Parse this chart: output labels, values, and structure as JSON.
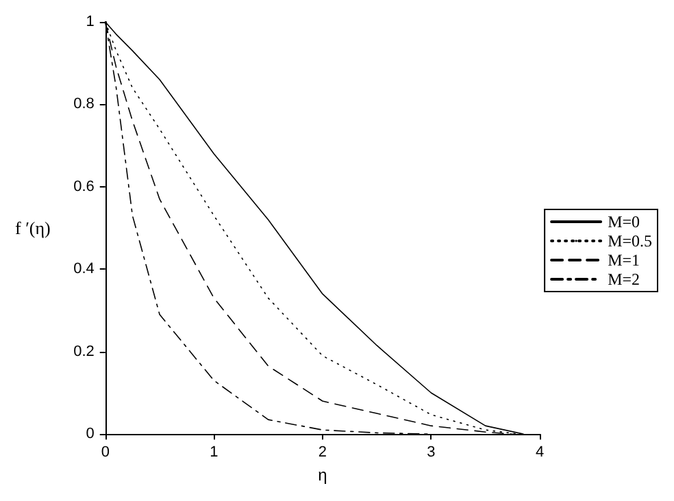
{
  "chart_data": {
    "type": "line",
    "xlabel": "η",
    "ylabel": "f ′(η)",
    "xlim": [
      0,
      4
    ],
    "ylim": [
      0,
      1
    ],
    "xticks": [
      0,
      1,
      2,
      3,
      4
    ],
    "yticks": [
      0,
      0.2,
      0.4,
      0.6,
      0.8,
      1
    ],
    "grid": false,
    "legend": "right",
    "marker": "none",
    "x": [
      0,
      0.1,
      0.25,
      0.5,
      1,
      1.5,
      2,
      2.5,
      3,
      3.5,
      3.85
    ],
    "series": [
      {
        "name": "M=0",
        "color": "#000000",
        "line_style": "solid",
        "values": [
          1,
          0.97,
          0.93,
          0.86,
          0.68,
          0.52,
          0.34,
          0.215,
          0.1,
          0.02,
          0
        ]
      },
      {
        "name": "M=0.5",
        "color": "#000000",
        "line_style": "dotted",
        "x": [
          0,
          0.1,
          0.25,
          0.5,
          1,
          1.5,
          2,
          2.5,
          3,
          3.5,
          3.8
        ],
        "values": [
          1,
          0.93,
          0.84,
          0.74,
          0.53,
          0.33,
          0.19,
          0.12,
          0.047,
          0.01,
          0
        ]
      },
      {
        "name": "M=1",
        "color": "#000000",
        "line_style": "dashed",
        "x": [
          0,
          0.1,
          0.25,
          0.5,
          1,
          1.5,
          2,
          2.5,
          3,
          3.5,
          3.75
        ],
        "values": [
          1,
          0.89,
          0.76,
          0.57,
          0.33,
          0.165,
          0.08,
          0.05,
          0.02,
          0.005,
          0
        ]
      },
      {
        "name": "M=2",
        "color": "#000000",
        "line_style": "dashdot",
        "x": [
          0,
          0.1,
          0.25,
          0.5,
          1,
          1.5,
          2,
          2.5,
          3
        ],
        "values": [
          1,
          0.84,
          0.53,
          0.29,
          0.13,
          0.035,
          0.01,
          0.003,
          0
        ]
      }
    ]
  }
}
